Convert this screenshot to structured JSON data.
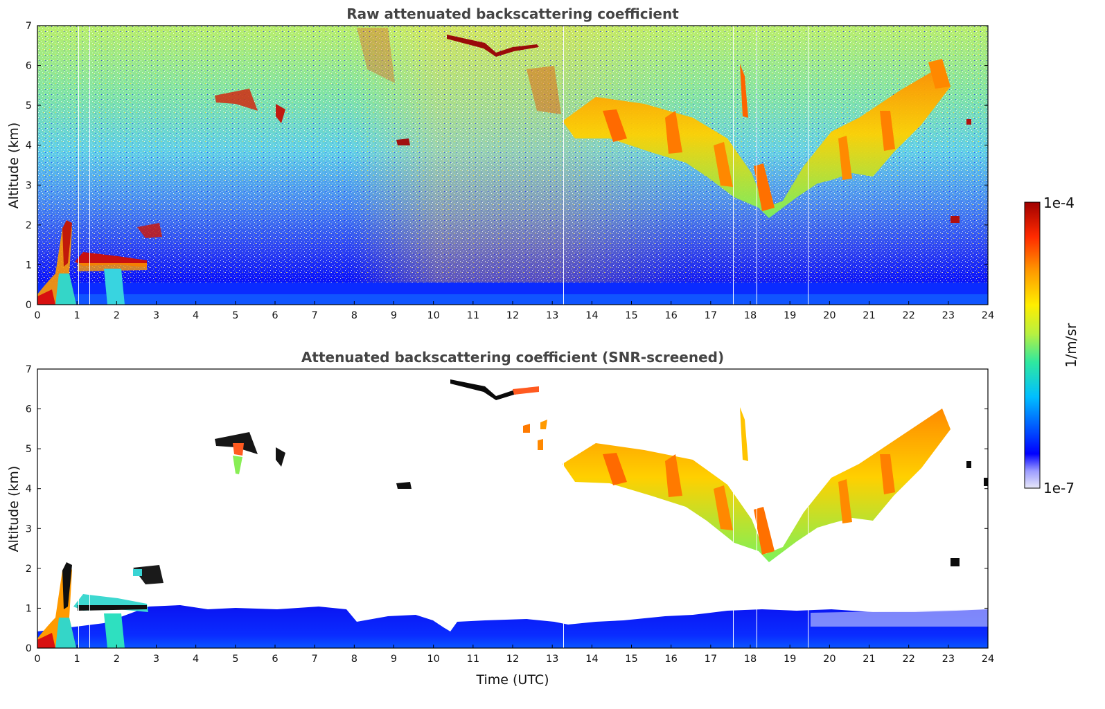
{
  "chart_data": {
    "type": "heatmap",
    "panels": [
      {
        "id": "raw",
        "title": "Raw attenuated backscattering coefficient",
        "xlabel": "",
        "ylabel": "Altitude (km)",
        "xlim": [
          0,
          24
        ],
        "ylim": [
          0,
          7
        ],
        "x_ticks": [
          "0",
          "1",
          "2",
          "3",
          "4",
          "5",
          "6",
          "7",
          "8",
          "9",
          "10",
          "11",
          "12",
          "13",
          "14",
          "15",
          "16",
          "17",
          "18",
          "19",
          "20",
          "21",
          "22",
          "23",
          "24"
        ],
        "y_ticks": [
          "0",
          "1",
          "2",
          "3",
          "4",
          "5",
          "6",
          "7"
        ]
      },
      {
        "id": "screened",
        "title": "Attenuated backscattering coefficient (SNR-screened)",
        "xlabel": "Time (UTC)",
        "ylabel": "Altitude (km)",
        "xlim": [
          0,
          24
        ],
        "ylim": [
          0,
          7
        ],
        "x_ticks": [
          "0",
          "1",
          "2",
          "3",
          "4",
          "5",
          "6",
          "7",
          "8",
          "9",
          "10",
          "11",
          "12",
          "13",
          "14",
          "15",
          "16",
          "17",
          "18",
          "19",
          "20",
          "21",
          "22",
          "23",
          "24"
        ],
        "y_ticks": [
          "0",
          "1",
          "2",
          "3",
          "4",
          "5",
          "6",
          "7"
        ]
      }
    ],
    "colorbar": {
      "label": "1/m/sr",
      "max_label": "1e-4",
      "min_label": "1e-7",
      "scale": "log",
      "range": [
        1e-07,
        0.0001
      ],
      "colormap": [
        "#e8e8f8",
        "#0000ff",
        "#00bfff",
        "#2ee8a0",
        "#b8f040",
        "#ffee00",
        "#ff9900",
        "#ff2a00",
        "#a00000"
      ]
    },
    "features": {
      "boundary_layer_km": [
        0,
        0.9
      ],
      "cirrus_descending_layer": {
        "start_utc": 13.3,
        "end_utc": 23.3,
        "top_km": 5.5,
        "min_base_km": 2.2,
        "min_at_utc": 18.5
      },
      "high_elevated_layer": {
        "start_utc": 10.3,
        "end_utc": 12.6,
        "altitude_km": 6.5
      },
      "low_cloud_layer": {
        "start_utc": 1.0,
        "end_utc": 2.8,
        "altitude_km": 1.1
      }
    }
  }
}
